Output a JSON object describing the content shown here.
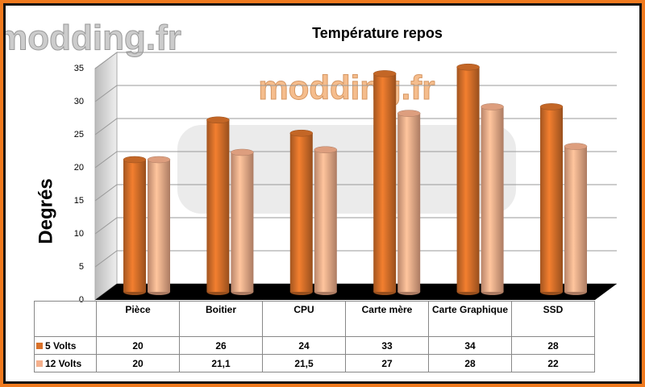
{
  "chart_data": {
    "type": "bar3d",
    "title": "Température repos",
    "watermark": "modding.fr",
    "ylabel": "Degrés",
    "categories": [
      "Pièce",
      "Boitier",
      "CPU",
      "Carte mère",
      "Carte Graphique",
      "SSD"
    ],
    "series": [
      {
        "name": "5 Volts",
        "color": "#d9712a",
        "values": [
          20,
          26,
          24,
          33,
          34,
          28
        ]
      },
      {
        "name": "12 Volts",
        "color": "#f5b08c",
        "values": [
          20,
          21.1,
          21.5,
          27,
          28,
          22
        ],
        "value_labels": [
          "20",
          "21,1",
          "21,5",
          "27",
          "28",
          "22"
        ]
      }
    ],
    "ylim": [
      0,
      35
    ],
    "yticks": [
      0,
      5,
      10,
      15,
      20,
      25,
      30,
      35
    ],
    "grid": true
  }
}
